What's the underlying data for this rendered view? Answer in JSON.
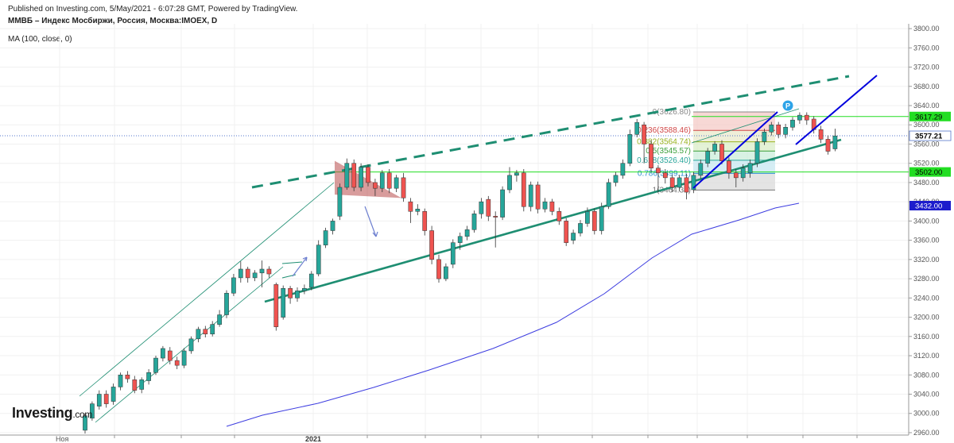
{
  "header": {
    "published": "Published on Investing.com, 5/May/2021 - 6:07:28 GMT, Powered by TradingView.",
    "instrument": "ММВБ – Индекс Мосбиржи, Россия, Москва:IMOEX, D",
    "indicator": "MA (100, close, 0)"
  },
  "logo": {
    "text": "Investing",
    "suffix": ".com"
  },
  "colors": {
    "up": "#26a69a",
    "down": "#ef5350",
    "trend": "#1e8e72",
    "blue": "#0000dd",
    "ma": "#3d3de0",
    "level": "#22dd22"
  },
  "chart_data": {
    "type": "candlestick",
    "ylim": [
      2955,
      3810
    ],
    "y_ticks": [
      "3800.00",
      "3760.00",
      "3720.00",
      "3680.00",
      "3640.00",
      "3600.00",
      "3560.00",
      "3520.00",
      "3480.00",
      "3440.00",
      "3400.00",
      "3360.00",
      "3320.00",
      "3280.00",
      "3240.00",
      "3200.00",
      "3160.00",
      "3120.00",
      "3080.00",
      "3040.00",
      "3000.00",
      "2960.00"
    ],
    "x_labels": [
      "Ноя",
      "2021"
    ],
    "price_badges": [
      {
        "label": "3617.29",
        "value": 3617.29,
        "kind": "level"
      },
      {
        "label": "3577.21",
        "value": 3577.21,
        "kind": "last"
      },
      {
        "label": "3502.00",
        "value": 3502.0,
        "kind": "level"
      },
      {
        "label": "3432.00",
        "value": 3432.0,
        "kind": "ma"
      }
    ],
    "fib_levels": [
      {
        "label": "0(3626.80)",
        "ratio": 0,
        "value": 3626.8
      },
      {
        "label": "0.236(3588.46)",
        "ratio": 0.236,
        "value": 3588.46
      },
      {
        "label": "0.382(3564.74)",
        "ratio": 0.382,
        "value": 3564.74
      },
      {
        "label": "0.5(3545.57)",
        "ratio": 0.5,
        "value": 3545.57
      },
      {
        "label": "0.618(3526.40)",
        "ratio": 0.618,
        "value": 3526.4
      },
      {
        "label": "0.786(3499.11)",
        "ratio": 0.786,
        "value": 3499.11
      },
      {
        "label": "1(3464.34)",
        "ratio": 1,
        "value": 3464.34
      }
    ],
    "marker": "P",
    "candles": [
      [
        2965,
        2995,
        2958,
        3000
      ],
      [
        2990,
        3020,
        2985,
        3025
      ],
      [
        3015,
        3040,
        3008,
        3048
      ],
      [
        3040,
        3020,
        3012,
        3048
      ],
      [
        3025,
        3055,
        3018,
        3062
      ],
      [
        3055,
        3080,
        3048,
        3085
      ],
      [
        3080,
        3072,
        3064,
        3088
      ],
      [
        3070,
        3048,
        3042,
        3078
      ],
      [
        3050,
        3070,
        3042,
        3075
      ],
      [
        3068,
        3085,
        3060,
        3092
      ],
      [
        3085,
        3115,
        3080,
        3120
      ],
      [
        3115,
        3135,
        3108,
        3140
      ],
      [
        3130,
        3110,
        3102,
        3138
      ],
      [
        3110,
        3100,
        3092,
        3118
      ],
      [
        3100,
        3130,
        3094,
        3136
      ],
      [
        3130,
        3155,
        3124,
        3160
      ],
      [
        3155,
        3175,
        3148,
        3180
      ],
      [
        3175,
        3165,
        3158,
        3182
      ],
      [
        3165,
        3185,
        3160,
        3192
      ],
      [
        3185,
        3205,
        3180,
        3215
      ],
      [
        3205,
        3250,
        3198,
        3256
      ],
      [
        3250,
        3282,
        3244,
        3290
      ],
      [
        3282,
        3300,
        3272,
        3316
      ],
      [
        3300,
        3282,
        3272,
        3305
      ],
      [
        3282,
        3292,
        3275,
        3298
      ],
      [
        3292,
        3300,
        3262,
        3318
      ],
      [
        3300,
        3290,
        3282,
        3306
      ],
      [
        3268,
        3180,
        3172,
        3272
      ],
      [
        3200,
        3260,
        3195,
        3266
      ],
      [
        3260,
        3240,
        3228,
        3265
      ],
      [
        3240,
        3255,
        3232,
        3262
      ],
      [
        3255,
        3260,
        3248,
        3268
      ],
      [
        3262,
        3290,
        3256,
        3296
      ],
      [
        3290,
        3350,
        3285,
        3360
      ],
      [
        3350,
        3380,
        3344,
        3386
      ],
      [
        3380,
        3400,
        3372,
        3405
      ],
      [
        3410,
        3470,
        3402,
        3478
      ],
      [
        3470,
        3520,
        3465,
        3530
      ],
      [
        3520,
        3470,
        3462,
        3528
      ],
      [
        3470,
        3512,
        3462,
        3520
      ],
      [
        3512,
        3480,
        3472,
        3518
      ],
      [
        3480,
        3468,
        3452,
        3488
      ],
      [
        3468,
        3500,
        3460,
        3506
      ],
      [
        3500,
        3468,
        3458,
        3508
      ],
      [
        3468,
        3490,
        3460,
        3496
      ],
      [
        3490,
        3448,
        3440,
        3500
      ],
      [
        3440,
        3420,
        3396,
        3448
      ],
      [
        3420,
        3425,
        3412,
        3435
      ],
      [
        3420,
        3380,
        3370,
        3426
      ],
      [
        3380,
        3320,
        3310,
        3390
      ],
      [
        3320,
        3280,
        3272,
        3330
      ],
      [
        3280,
        3305,
        3275,
        3312
      ],
      [
        3310,
        3355,
        3302,
        3362
      ],
      [
        3355,
        3368,
        3340,
        3376
      ],
      [
        3368,
        3382,
        3360,
        3390
      ],
      [
        3382,
        3415,
        3376,
        3422
      ],
      [
        3415,
        3440,
        3405,
        3448
      ],
      [
        3445,
        3410,
        3400,
        3452
      ],
      [
        3410,
        3408,
        3345,
        3420
      ],
      [
        3408,
        3465,
        3402,
        3472
      ],
      [
        3465,
        3495,
        3458,
        3512
      ],
      [
        3495,
        3500,
        3482,
        3506
      ],
      [
        3500,
        3430,
        3420,
        3508
      ],
      [
        3430,
        3475,
        3420,
        3482
      ],
      [
        3475,
        3425,
        3416,
        3482
      ],
      [
        3425,
        3440,
        3418,
        3448
      ],
      [
        3440,
        3420,
        3412,
        3446
      ],
      [
        3420,
        3400,
        3392,
        3428
      ],
      [
        3400,
        3355,
        3348,
        3406
      ],
      [
        3360,
        3375,
        3352,
        3382
      ],
      [
        3375,
        3395,
        3368,
        3402
      ],
      [
        3395,
        3420,
        3388,
        3428
      ],
      [
        3420,
        3380,
        3372,
        3426
      ],
      [
        3380,
        3430,
        3372,
        3438
      ],
      [
        3430,
        3480,
        3425,
        3488
      ],
      [
        3480,
        3495,
        3472,
        3502
      ],
      [
        3495,
        3520,
        3488,
        3528
      ],
      [
        3520,
        3580,
        3514,
        3590
      ],
      [
        3580,
        3605,
        3574,
        3612
      ],
      [
        3600,
        3560,
        3520,
        3606
      ],
      [
        3560,
        3510,
        3502,
        3568
      ],
      [
        3510,
        3500,
        3460,
        3516
      ],
      [
        3500,
        3490,
        3478,
        3508
      ],
      [
        3490,
        3470,
        3460,
        3496
      ],
      [
        3470,
        3490,
        3462,
        3496
      ],
      [
        3490,
        3460,
        3445,
        3498
      ],
      [
        3465,
        3495,
        3458,
        3502
      ],
      [
        3495,
        3520,
        3488,
        3528
      ],
      [
        3520,
        3545,
        3512,
        3552
      ],
      [
        3545,
        3560,
        3538,
        3566
      ],
      [
        3560,
        3525,
        3518,
        3568
      ],
      [
        3525,
        3500,
        3488,
        3532
      ],
      [
        3500,
        3490,
        3470,
        3508
      ],
      [
        3490,
        3510,
        3482,
        3518
      ],
      [
        3500,
        3520,
        3490,
        3528
      ],
      [
        3520,
        3565,
        3512,
        3572
      ],
      [
        3565,
        3585,
        3558,
        3592
      ],
      [
        3585,
        3600,
        3578,
        3606
      ],
      [
        3600,
        3580,
        3572,
        3606
      ],
      [
        3580,
        3595,
        3572,
        3602
      ],
      [
        3595,
        3610,
        3588,
        3616
      ],
      [
        3610,
        3620,
        3602,
        3626
      ],
      [
        3620,
        3610,
        3600,
        3626
      ],
      [
        3612,
        3590,
        3582,
        3618
      ],
      [
        3590,
        3570,
        3562,
        3598
      ],
      [
        3570,
        3545,
        3538,
        3578
      ],
      [
        3550,
        3577,
        3545,
        3592
      ]
    ]
  }
}
